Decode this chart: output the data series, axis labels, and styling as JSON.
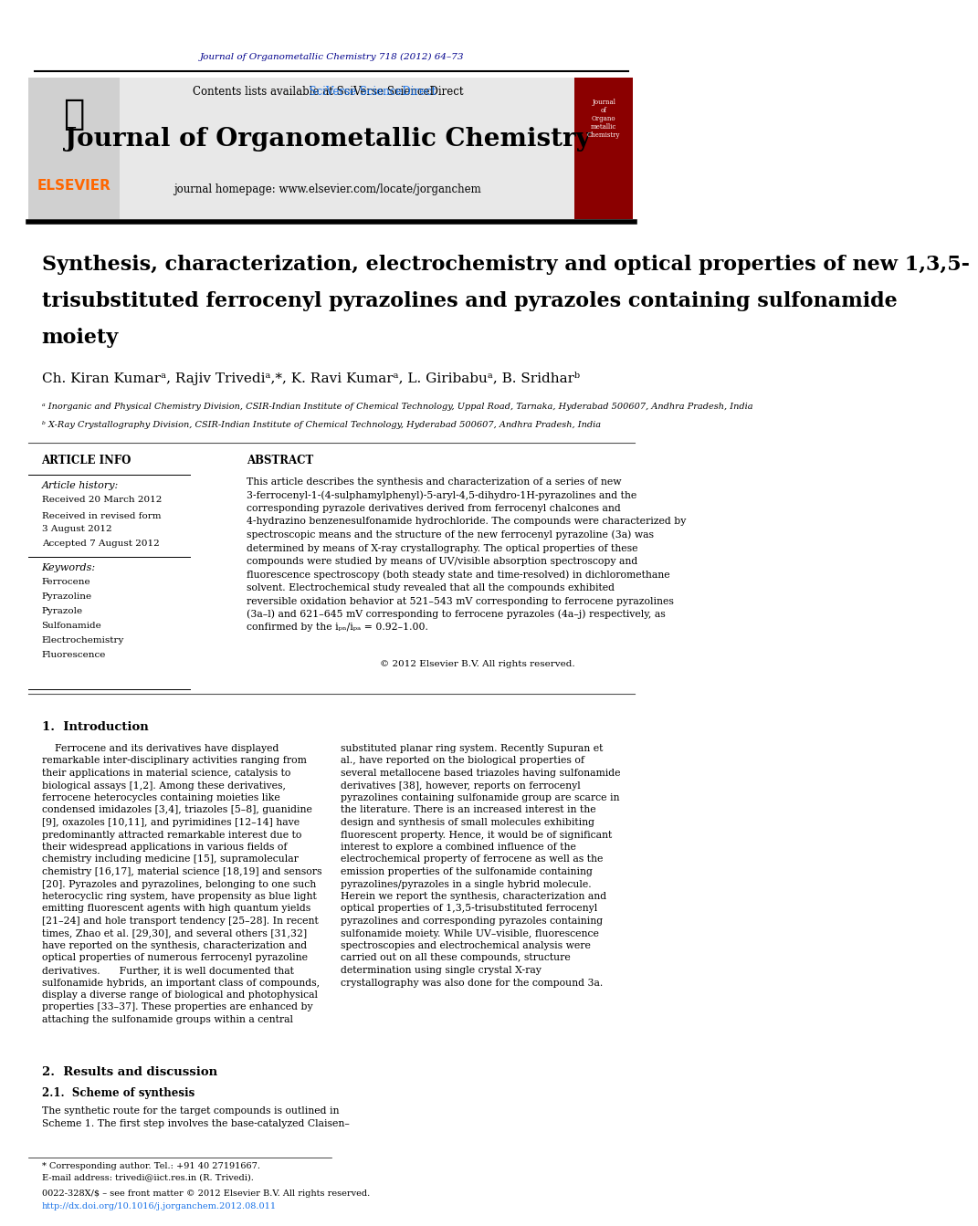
{
  "page_bg": "#ffffff",
  "top_link_text": "Journal of Organometallic Chemistry 718 (2012) 64–73",
  "top_link_color": "#00008B",
  "header_bg": "#e8e8e8",
  "journal_title": "Journal of Organometallic Chemistry",
  "journal_homepage": "journal homepage: www.elsevier.com/locate/jorganchem",
  "contents_text": "Contents lists available at ",
  "sciverse_text": "SciVerse ScienceDirect",
  "sciverse_color": "#1a73e8",
  "article_title": "Synthesis, characterization, electrochemistry and optical properties of new 1,3,5-\ntrisubstituted ferrocenyl pyrazolines and pyrazoles containing sulfonamide\nmoiety",
  "authors": "Ch. Kiran Kumarᵃ, Rajiv Trivediᵃ,*, K. Ravi Kumarᵃ, L. Giribabuᵃ, B. Sridharᵇ",
  "affil_a": "ᵃ Inorganic and Physical Chemistry Division, CSIR-Indian Institute of Chemical Technology, Uppal Road, Tarnaka, Hyderabad 500607, Andhra Pradesh, India",
  "affil_b": "ᵇ X-Ray Crystallography Division, CSIR-Indian Institute of Chemical Technology, Hyderabad 500607, Andhra Pradesh, India",
  "article_info_title": "ARTICLE INFO",
  "article_history_title": "Article history:",
  "received": "Received 20 March 2012",
  "revised": "Received in revised form\n3 August 2012",
  "accepted": "Accepted 7 August 2012",
  "keywords_title": "Keywords:",
  "keywords": [
    "Ferrocene",
    "Pyrazoline",
    "Pyrazole",
    "Sulfonamide",
    "Electrochemistry",
    "Fluorescence"
  ],
  "abstract_title": "ABSTRACT",
  "abstract_text": "This article describes the synthesis and characterization of a series of new 3-ferrocenyl-1-(4-sulphamylphenyl)-5-aryl-4,5-dihydro-1H-pyrazolines and the corresponding pyrazole derivatives derived from ferrocenyl chalcones and 4-hydrazino benzenesulfonamide hydrochloride. The compounds were characterized by spectroscopic means and the structure of the new ferrocenyl pyrazoline (3a) was determined by means of X-ray crystallography. The optical properties of these compounds were studied by means of UV/visible absorption spectroscopy and fluorescence spectroscopy (both steady state and time-resolved) in dichloromethane solvent. Electrochemical study revealed that all the compounds exhibited reversible oxidation behavior at 521–543 mV corresponding to ferrocene pyrazolines (3a–l) and 621–645 mV corresponding to ferrocene pyrazoles (4a–j) respectively, as confirmed by the iₚₙ/iₚₐ = 0.92–1.00.",
  "copyright": "© 2012 Elsevier B.V. All rights reserved.",
  "intro_title": "1.  Introduction",
  "intro_col1": "    Ferrocene and its derivatives have displayed remarkable inter-disciplinary activities ranging from their applications in material science, catalysis to biological assays [1,2]. Among these derivatives, ferrocene heterocycles containing moieties like condensed imidazoles [3,4], triazoles [5–8], guanidine [9], oxazoles [10,11], and pyrimidines [12–14] have predominantly attracted remarkable interest due to their widespread applications in various fields of chemistry including medicine [15], supramolecular chemistry [16,17], material science [18,19] and sensors [20]. Pyrazoles and pyrazolines, belonging to one such heterocyclic ring system, have propensity as blue light emitting fluorescent agents with high quantum yields [21–24] and hole transport tendency [25–28]. In recent times, Zhao et al. [29,30], and several others [31,32] have reported on the synthesis, characterization and optical properties of numerous ferrocenyl pyrazoline derivatives.\n\n    Further, it is well documented that sulfonamide hybrids, an important class of compounds, display a diverse range of biological and photophysical properties [33–37]. These properties are enhanced by attaching the sulfonamide groups within a central",
  "intro_col2": "substituted planar ring system. Recently Supuran et al., have reported on the biological properties of several metallocene based triazoles having sulfonamide derivatives [38], however, reports on ferrocenyl pyrazolines containing sulfonamide group are scarce in the literature. There is an increased interest in the design and synthesis of small molecules exhibiting fluorescent property. Hence, it would be of significant interest to explore a combined influence of the electrochemical property of ferrocene as well as the emission properties of the sulfonamide containing pyrazolines/pyrazoles in a single hybrid molecule.\n\n    Herein we report the synthesis, characterization and optical properties of 1,3,5-trisubstituted ferrocenyl pyrazolines and corresponding pyrazoles containing sulfonamide moiety. While UV–visible, fluorescence spectroscopies and electrochemical analysis were carried out on all these compounds, structure determination using single crystal X-ray crystallography was also done for the compound 3a.",
  "results_title": "2.  Results and discussion",
  "results_sub": "2.1.  Scheme of synthesis",
  "results_text": "    The synthetic route for the target compounds is outlined in\nScheme 1. The first step involves the base-catalyzed Claisen–",
  "footnote_star": "* Corresponding author. Tel.: +91 40 27191667.",
  "footnote_email": "E-mail address: trivedi@iict.res.in (R. Trivedi).",
  "footer_issn": "0022-328X/$ – see front matter © 2012 Elsevier B.V. All rights reserved.",
  "footer_doi": "http://dx.doi.org/10.1016/j.jorganchem.2012.08.011"
}
